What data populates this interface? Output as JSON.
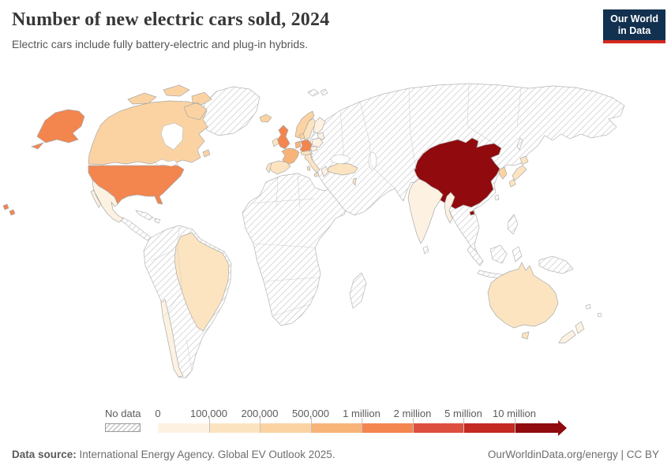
{
  "header": {
    "title": "Number of new electric cars sold, 2024",
    "subtitle": "Electric cars include fully battery-electric and plug-in hybrids.",
    "logo_line1": "Our World",
    "logo_line2": "in Data"
  },
  "chart_data": {
    "type": "choropleth_map",
    "title": "Number of new electric cars sold, 2024",
    "subtitle": "Electric cars include fully battery-electric and plug-in hybrids.",
    "year": "2024",
    "unit": "new electric cars sold (battery-electric and plug-in hybrid)",
    "projection": "world map",
    "legend": {
      "no_data_label": "No data",
      "bin_edge_labels": [
        "0",
        "100,000",
        "200,000",
        "500,000",
        "1 million",
        "2 million",
        "5 million",
        "10 million"
      ],
      "bin_colors": [
        "#fdf2e1",
        "#fce4c1",
        "#fbd3a2",
        "#f8b478",
        "#f3854f",
        "#dd4f3e",
        "#c42a22",
        "#900a0e"
      ],
      "bin_ranges": [
        "0–100,000",
        "100,000–200,000",
        "200,000–500,000",
        "500,000–1 million",
        "1–2 million",
        "2–5 million",
        "5–10 million",
        "10 million+"
      ]
    },
    "countries": [
      {
        "id": "china",
        "name": "China",
        "bin": 7
      },
      {
        "id": "united-states",
        "name": "United States",
        "bin": 4
      },
      {
        "id": "united-kingdom",
        "name": "United Kingdom",
        "bin": 4
      },
      {
        "id": "germany",
        "name": "Germany",
        "bin": 4
      },
      {
        "id": "france",
        "name": "France",
        "bin": 3
      },
      {
        "id": "benelux",
        "name": "Belgium & Netherlands",
        "bin": 3
      },
      {
        "id": "canada",
        "name": "Canada",
        "bin": 2
      },
      {
        "id": "norway",
        "name": "Norway",
        "bin": 2
      },
      {
        "id": "denmark",
        "name": "Denmark",
        "bin": 2
      },
      {
        "id": "south-korea",
        "name": "South Korea",
        "bin": 2
      },
      {
        "id": "iceland",
        "name": "Iceland",
        "bin": 2
      },
      {
        "id": "sweden",
        "name": "Sweden",
        "bin": 1
      },
      {
        "id": "ireland",
        "name": "Ireland",
        "bin": 1
      },
      {
        "id": "spain",
        "name": "Spain",
        "bin": 1
      },
      {
        "id": "portugal",
        "name": "Portugal",
        "bin": 1
      },
      {
        "id": "italy",
        "name": "Italy",
        "bin": 1
      },
      {
        "id": "alpine",
        "name": "Switzerland & Austria",
        "bin": 1
      },
      {
        "id": "turkey",
        "name": "Turkey",
        "bin": 1
      },
      {
        "id": "israel",
        "name": "Israel",
        "bin": 1
      },
      {
        "id": "brazil",
        "name": "Brazil",
        "bin": 1
      },
      {
        "id": "australia",
        "name": "Australia",
        "bin": 1
      },
      {
        "id": "japan",
        "name": "Japan",
        "bin": 1
      },
      {
        "id": "india",
        "name": "India",
        "bin": 0
      },
      {
        "id": "mexico",
        "name": "Mexico",
        "bin": 0
      },
      {
        "id": "chile",
        "name": "Chile",
        "bin": 0
      },
      {
        "id": "thailand",
        "name": "Thailand",
        "bin": 0
      },
      {
        "id": "new-zealand",
        "name": "New Zealand",
        "bin": 0
      },
      {
        "id": "finland",
        "name": "Finland",
        "bin": 0
      },
      {
        "id": "poland",
        "name": "Poland",
        "bin": 0
      },
      {
        "id": "baltics",
        "name": "Baltic states",
        "bin": 0
      },
      {
        "id": "czechia",
        "name": "Czechia",
        "bin": 0
      },
      {
        "id": "greece",
        "name": "Greece",
        "bin": 0
      }
    ],
    "no_data_regions": [
      "Russia",
      "Most of Africa",
      "Middle East (except Israel and Turkey)",
      "Central Asia",
      "Argentina and Andean South America",
      "Central America and Caribbean",
      "Greenland",
      "Indonesia",
      "Philippines",
      "Papua New Guinea"
    ]
  },
  "map_style": {
    "ocean": "#ffffff",
    "border": "#adadad",
    "no_data_hatch_line": "#c9c9c9"
  },
  "footer": {
    "source_label": "Data source:",
    "source_text": " International Energy Agency. Global EV Outlook 2025.",
    "right_text": "OurWorldinData.org/energy | CC BY"
  }
}
